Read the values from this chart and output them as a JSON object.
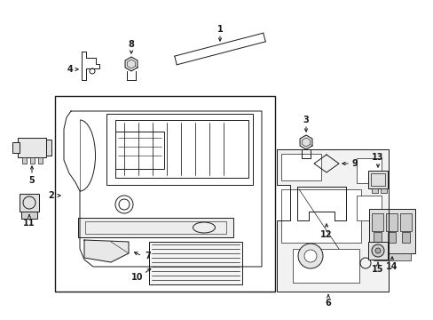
{
  "bg_color": "#ffffff",
  "lc": "#1a1a1a",
  "lw": 0.7,
  "fig_w": 4.89,
  "fig_h": 3.6,
  "dpi": 100
}
